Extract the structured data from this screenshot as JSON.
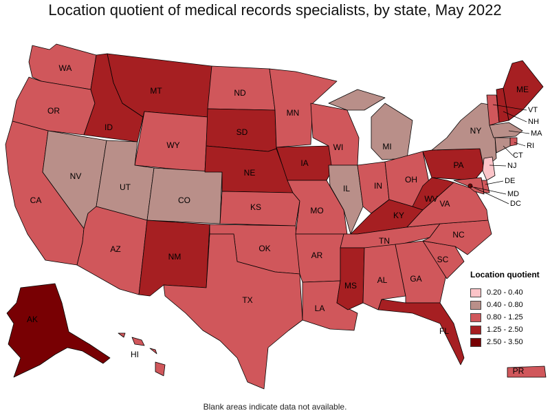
{
  "title": "Location quotient of medical records specialists, by state, May 2022",
  "footnote": "Blank areas indicate data not available.",
  "legend": {
    "title": "Location quotient",
    "items": [
      {
        "label": "0.20 - 0.40",
        "color": "#fbc4c8"
      },
      {
        "label": "0.40 - 0.80",
        "color": "#b98f89"
      },
      {
        "label": "0.80 - 1.25",
        "color": "#d0575b"
      },
      {
        "label": "1.25 - 2.50",
        "color": "#a61f22"
      },
      {
        "label": "2.50 - 3.50",
        "color": "#780003"
      }
    ]
  },
  "chart_data": {
    "type": "choropleth",
    "title": "Location quotient of medical records specialists, by state, May 2022",
    "bins": [
      "0.20 - 0.40",
      "0.40 - 0.80",
      "0.80 - 1.25",
      "1.25 - 2.50",
      "2.50 - 3.50"
    ],
    "states": {
      "WA": "0.80 - 1.25",
      "OR": "0.80 - 1.25",
      "CA": "0.80 - 1.25",
      "NV": "0.40 - 0.80",
      "ID": "1.25 - 2.50",
      "MT": "1.25 - 2.50",
      "WY": "0.80 - 1.25",
      "UT": "0.40 - 0.80",
      "CO": "0.40 - 0.80",
      "AZ": "0.80 - 1.25",
      "NM": "1.25 - 2.50",
      "ND": "0.80 - 1.25",
      "SD": "1.25 - 2.50",
      "NE": "1.25 - 2.50",
      "KS": "0.80 - 1.25",
      "OK": "0.80 - 1.25",
      "TX": "0.80 - 1.25",
      "MN": "0.80 - 1.25",
      "IA": "1.25 - 2.50",
      "MO": "0.80 - 1.25",
      "AR": "0.80 - 1.25",
      "LA": "0.80 - 1.25",
      "WI": "0.80 - 1.25",
      "IL": "0.40 - 0.80",
      "MI": "0.40 - 0.80",
      "IN": "0.80 - 1.25",
      "OH": "0.80 - 1.25",
      "KY": "1.25 - 2.50",
      "TN": "0.80 - 1.25",
      "MS": "1.25 - 2.50",
      "AL": "0.80 - 1.25",
      "GA": "0.80 - 1.25",
      "FL": "1.25 - 2.50",
      "SC": "0.80 - 1.25",
      "NC": "0.80 - 1.25",
      "VA": "0.80 - 1.25",
      "WV": "1.25 - 2.50",
      "PA": "1.25 - 2.50",
      "NY": "0.40 - 0.80",
      "VT": "0.80 - 1.25",
      "NH": "1.25 - 2.50",
      "ME": "1.25 - 2.50",
      "MA": "0.40 - 0.80",
      "RI": "0.80 - 1.25",
      "CT": "0.40 - 0.80",
      "NJ": "0.20 - 0.40",
      "DE": "0.80 - 1.25",
      "MD": "0.80 - 1.25",
      "DC": "2.50 - 3.50",
      "AK": "2.50 - 3.50",
      "HI": "0.80 - 1.25",
      "PR": "0.80 - 1.25"
    }
  }
}
